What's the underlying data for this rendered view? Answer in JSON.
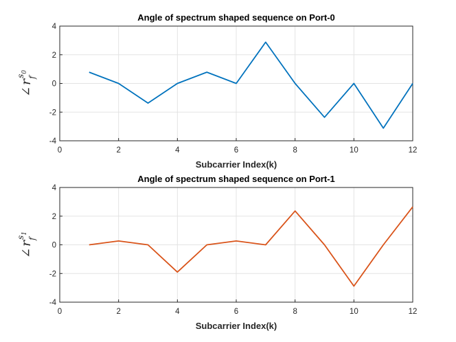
{
  "chart_data": [
    {
      "type": "line",
      "title": "Angle of spectrum shaped sequence on Port-0",
      "xlabel": "Subcarrier Index(k)",
      "ylabel": {
        "angle": "∠",
        "base": "r",
        "sub": "f",
        "sup": "s",
        "supsub": "0"
      },
      "xlim": [
        0,
        12
      ],
      "ylim": [
        -4,
        4
      ],
      "xticks": [
        "0",
        "2",
        "4",
        "6",
        "8",
        "10",
        "12"
      ],
      "yticks": [
        "4",
        "2",
        "0",
        "-2",
        "-4"
      ],
      "grid": true,
      "color": "#0072BD",
      "x": [
        1,
        2,
        3,
        4,
        5,
        6,
        7,
        8,
        9,
        10,
        11,
        12
      ],
      "y": [
        0.785,
        0,
        -1.37,
        0,
        0.785,
        0,
        2.88,
        0,
        -2.36,
        0,
        -3.12,
        0
      ]
    },
    {
      "type": "line",
      "title": "Angle of spectrum shaped sequence on Port-1",
      "xlabel": "Subcarrier Index(k)",
      "ylabel": {
        "angle": "∠",
        "base": "r",
        "sub": "f",
        "sup": "s",
        "supsub": "1"
      },
      "xlim": [
        0,
        12
      ],
      "ylim": [
        -4,
        4
      ],
      "xticks": [
        "0",
        "2",
        "4",
        "6",
        "8",
        "10",
        "12"
      ],
      "yticks": [
        "4",
        "2",
        "0",
        "-2",
        "-4"
      ],
      "grid": true,
      "color": "#D95319",
      "x": [
        1,
        2,
        3,
        4,
        5,
        6,
        7,
        8,
        9,
        10,
        11,
        12
      ],
      "y": [
        0,
        0.27,
        0,
        -1.9,
        0,
        0.27,
        0,
        2.36,
        0,
        -2.88,
        0,
        2.65
      ]
    }
  ]
}
